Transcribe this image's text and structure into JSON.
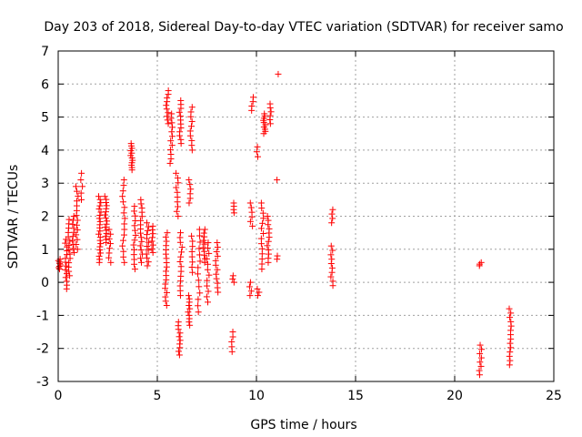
{
  "chart_data": {
    "type": "scatter",
    "title": "Day 203 of 2018, Sidereal Day-to-day VTEC variation (SDTVAR) for receiver samo",
    "xlabel": "GPS time / hours",
    "ylabel": "SDTVAR / TECUs",
    "xlim": [
      0,
      25
    ],
    "ylim": [
      -3,
      7
    ],
    "xticks": [
      0,
      5,
      10,
      15,
      20,
      25
    ],
    "yticks": [
      -3,
      -2,
      -1,
      0,
      1,
      2,
      3,
      4,
      5,
      6,
      7
    ],
    "grid": true,
    "marker": "+",
    "color": "#ff0000",
    "clusters": [
      {
        "x": 0.05,
        "y_min": 0.4,
        "y_max": 0.7,
        "n": 8
      },
      {
        "x": 0.4,
        "y_min": -0.2,
        "y_max": 1.3,
        "n": 14
      },
      {
        "x": 0.55,
        "y_min": 0.2,
        "y_max": 1.9,
        "n": 14
      },
      {
        "x": 0.75,
        "y_min": 0.9,
        "y_max": 2.0,
        "n": 10
      },
      {
        "x": 0.95,
        "y_min": 1.0,
        "y_max": 2.9,
        "n": 14
      },
      {
        "x": 1.2,
        "y_min": 2.5,
        "y_max": 3.3,
        "n": 5
      },
      {
        "x": 2.1,
        "y_min": 0.6,
        "y_max": 2.6,
        "n": 22
      },
      {
        "x": 2.4,
        "y_min": 1.2,
        "y_max": 2.6,
        "n": 16
      },
      {
        "x": 2.6,
        "y_min": 0.6,
        "y_max": 1.6,
        "n": 8
      },
      {
        "x": 3.3,
        "y_min": 0.6,
        "y_max": 3.1,
        "n": 16
      },
      {
        "x": 3.7,
        "y_min": 3.4,
        "y_max": 4.2,
        "n": 12
      },
      {
        "x": 3.85,
        "y_min": 0.4,
        "y_max": 2.3,
        "n": 14
      },
      {
        "x": 4.2,
        "y_min": 0.6,
        "y_max": 2.5,
        "n": 16
      },
      {
        "x": 4.5,
        "y_min": 0.5,
        "y_max": 1.8,
        "n": 12
      },
      {
        "x": 4.75,
        "y_min": 0.9,
        "y_max": 1.7,
        "n": 8
      },
      {
        "x": 5.45,
        "y_min": -0.7,
        "y_max": 1.5,
        "n": 18
      },
      {
        "x": 5.5,
        "y_min": 4.8,
        "y_max": 5.8,
        "n": 10
      },
      {
        "x": 5.7,
        "y_min": 3.6,
        "y_max": 5.1,
        "n": 12
      },
      {
        "x": 6.0,
        "y_min": 2.0,
        "y_max": 3.3,
        "n": 10
      },
      {
        "x": 6.1,
        "y_min": -2.2,
        "y_max": -1.2,
        "n": 10
      },
      {
        "x": 6.15,
        "y_min": 4.2,
        "y_max": 5.5,
        "n": 12
      },
      {
        "x": 6.2,
        "y_min": -0.4,
        "y_max": 1.5,
        "n": 14
      },
      {
        "x": 6.6,
        "y_min": -1.3,
        "y_max": -0.4,
        "n": 10
      },
      {
        "x": 6.65,
        "y_min": 2.4,
        "y_max": 3.1,
        "n": 6
      },
      {
        "x": 6.7,
        "y_min": 4.0,
        "y_max": 5.3,
        "n": 10
      },
      {
        "x": 6.75,
        "y_min": 0.3,
        "y_max": 1.4,
        "n": 8
      },
      {
        "x": 7.1,
        "y_min": -0.9,
        "y_max": 1.6,
        "n": 14
      },
      {
        "x": 7.35,
        "y_min": 0.6,
        "y_max": 1.6,
        "n": 10
      },
      {
        "x": 7.55,
        "y_min": -0.6,
        "y_max": 1.2,
        "n": 12
      },
      {
        "x": 8.0,
        "y_min": -0.3,
        "y_max": 1.2,
        "n": 12
      },
      {
        "x": 8.8,
        "y_min": -2.1,
        "y_max": -1.5,
        "n": 5
      },
      {
        "x": 8.85,
        "y_min": 0.0,
        "y_max": 0.2,
        "n": 3
      },
      {
        "x": 8.9,
        "y_min": 2.1,
        "y_max": 2.4,
        "n": 4
      },
      {
        "x": 9.7,
        "y_min": -0.4,
        "y_max": 0.0,
        "n": 4
      },
      {
        "x": 9.75,
        "y_min": 1.7,
        "y_max": 2.4,
        "n": 6
      },
      {
        "x": 9.8,
        "y_min": 5.2,
        "y_max": 5.6,
        "n": 4
      },
      {
        "x": 10.05,
        "y_min": 3.8,
        "y_max": 4.1,
        "n": 3
      },
      {
        "x": 10.1,
        "y_min": -0.4,
        "y_max": -0.2,
        "n": 3
      },
      {
        "x": 10.3,
        "y_min": 0.4,
        "y_max": 2.4,
        "n": 14
      },
      {
        "x": 10.4,
        "y_min": 4.5,
        "y_max": 5.1,
        "n": 10
      },
      {
        "x": 10.6,
        "y_min": 0.6,
        "y_max": 2.0,
        "n": 12
      },
      {
        "x": 10.7,
        "y_min": 4.8,
        "y_max": 5.4,
        "n": 6
      },
      {
        "x": 11.0,
        "y_min": 0.7,
        "y_max": 0.8,
        "n": 2
      },
      {
        "x": 11.1,
        "y_min": 6.3,
        "y_max": 6.3,
        "n": 1
      },
      {
        "x": 11.05,
        "y_min": 3.1,
        "y_max": 3.1,
        "n": 1
      },
      {
        "x": 13.8,
        "y_min": 1.8,
        "y_max": 2.2,
        "n": 4
      },
      {
        "x": 13.8,
        "y_min": -0.1,
        "y_max": 1.1,
        "n": 10
      },
      {
        "x": 21.3,
        "y_min": 0.5,
        "y_max": 0.6,
        "n": 3
      },
      {
        "x": 21.3,
        "y_min": -2.8,
        "y_max": -1.9,
        "n": 8
      },
      {
        "x": 22.8,
        "y_min": -2.5,
        "y_max": -0.8,
        "n": 14
      }
    ]
  }
}
